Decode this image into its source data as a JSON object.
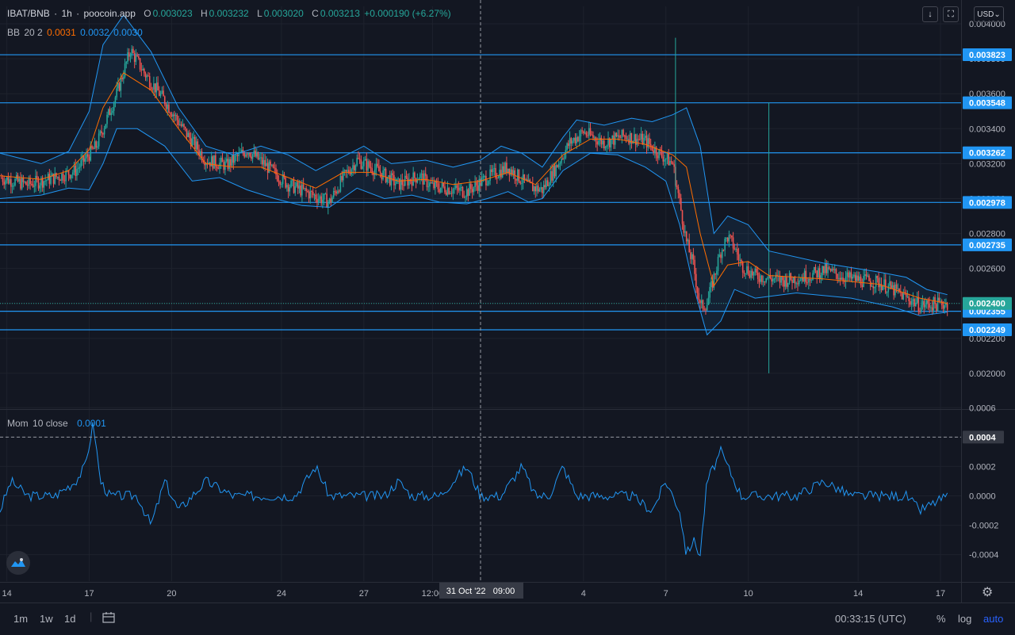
{
  "header": {
    "pair": "IBAT/BNB",
    "interval": "1h",
    "source": "poocoin.app",
    "open_label": "O",
    "open": "0.003023",
    "high_label": "H",
    "high": "0.003232",
    "low_label": "L",
    "low": "0.003020",
    "close_label": "C",
    "close": "0.003213",
    "change": "+0.000190 (+6.27%)",
    "currency": "USD"
  },
  "bb_legend": {
    "name": "BB",
    "params": "20 2",
    "basis": "0.0031",
    "upper": "0.0032",
    "lower": "0.0030"
  },
  "mom_legend": {
    "name": "Mom",
    "params": "10 close",
    "value": "0.0001"
  },
  "colors": {
    "background": "#131722",
    "up": "#26a69a",
    "down": "#ef5350",
    "bb_band": "#2196f3",
    "bb_basis": "#ff6d00",
    "level_line": "#2962ff",
    "mom_line": "#2196f3",
    "last_price": "#26a69a"
  },
  "chart_data": [
    {
      "type": "candlestick",
      "panel": "price",
      "ylim": [
        0.0018,
        0.0041
      ],
      "y_ticks": [
        "0.002000",
        "0.002200",
        "0.002400",
        "0.002600",
        "0.002800",
        "0.003000",
        "0.003200",
        "0.003400",
        "0.003600",
        "0.003800",
        "0.004000"
      ],
      "horizontal_levels": [
        "0.003823",
        "0.003548",
        "0.003262",
        "0.002978",
        "0.002735",
        "0.002355",
        "0.002249"
      ],
      "last_price": "0.002400",
      "price_path": [
        [
          0,
          0.00312
        ],
        [
          20,
          0.00308
        ],
        [
          40,
          0.00312
        ],
        [
          55,
          0.00316
        ],
        [
          70,
          0.0033
        ],
        [
          85,
          0.0036
        ],
        [
          95,
          0.00385
        ],
        [
          105,
          0.00372
        ],
        [
          120,
          0.00356
        ],
        [
          135,
          0.00338
        ],
        [
          150,
          0.00322
        ],
        [
          165,
          0.00319
        ],
        [
          180,
          0.00328
        ],
        [
          195,
          0.00318
        ],
        [
          210,
          0.00308
        ],
        [
          225,
          0.00303
        ],
        [
          240,
          0.00298
        ],
        [
          250,
          0.00312
        ],
        [
          260,
          0.00322
        ],
        [
          275,
          0.00316
        ],
        [
          290,
          0.00308
        ],
        [
          305,
          0.00313
        ],
        [
          315,
          0.00307
        ],
        [
          325,
          0.00306
        ],
        [
          340,
          0.00304
        ],
        [
          355,
          0.00312
        ],
        [
          370,
          0.00318
        ],
        [
          385,
          0.00307
        ],
        [
          395,
          0.00305
        ],
        [
          405,
          0.00318
        ],
        [
          415,
          0.00332
        ],
        [
          425,
          0.00338
        ],
        [
          440,
          0.00332
        ],
        [
          455,
          0.00336
        ],
        [
          470,
          0.00333
        ],
        [
          480,
          0.00326
        ],
        [
          490,
          0.0032
        ],
        [
          495,
          0.00298
        ],
        [
          500,
          0.00275
        ],
        [
          505,
          0.00262
        ],
        [
          510,
          0.00238
        ],
        [
          515,
          0.0024
        ],
        [
          520,
          0.00255
        ],
        [
          525,
          0.0027
        ],
        [
          530,
          0.00278
        ],
        [
          535,
          0.00272
        ],
        [
          540,
          0.00262
        ],
        [
          550,
          0.00256
        ],
        [
          570,
          0.00253
        ],
        [
          590,
          0.00256
        ],
        [
          600,
          0.00259
        ],
        [
          620,
          0.00254
        ],
        [
          640,
          0.00252
        ],
        [
          650,
          0.00248
        ],
        [
          670,
          0.00239
        ],
        [
          690,
          0.0024
        ]
      ],
      "bb_upper": [
        [
          0,
          0.00326
        ],
        [
          30,
          0.0032
        ],
        [
          50,
          0.00327
        ],
        [
          65,
          0.0035
        ],
        [
          75,
          0.00388
        ],
        [
          90,
          0.00405
        ],
        [
          110,
          0.00384
        ],
        [
          130,
          0.00352
        ],
        [
          150,
          0.0033
        ],
        [
          170,
          0.00325
        ],
        [
          190,
          0.0033
        ],
        [
          210,
          0.00325
        ],
        [
          230,
          0.00316
        ],
        [
          250,
          0.00324
        ],
        [
          265,
          0.0033
        ],
        [
          285,
          0.0032
        ],
        [
          310,
          0.00322
        ],
        [
          330,
          0.00318
        ],
        [
          350,
          0.00322
        ],
        [
          365,
          0.0033
        ],
        [
          380,
          0.00326
        ],
        [
          395,
          0.00318
        ],
        [
          410,
          0.00335
        ],
        [
          420,
          0.00345
        ],
        [
          440,
          0.00342
        ],
        [
          460,
          0.00346
        ],
        [
          475,
          0.00344
        ],
        [
          490,
          0.00348
        ],
        [
          500,
          0.00352
        ],
        [
          510,
          0.0033
        ],
        [
          520,
          0.0028
        ],
        [
          530,
          0.0029
        ],
        [
          545,
          0.00285
        ],
        [
          560,
          0.0027
        ],
        [
          600,
          0.00263
        ],
        [
          640,
          0.00258
        ],
        [
          660,
          0.00255
        ],
        [
          675,
          0.00248
        ],
        [
          690,
          0.00245
        ]
      ],
      "bb_lower": [
        [
          0,
          0.003
        ],
        [
          30,
          0.00302
        ],
        [
          50,
          0.00306
        ],
        [
          65,
          0.00305
        ],
        [
          75,
          0.0032
        ],
        [
          85,
          0.0034
        ],
        [
          100,
          0.0034
        ],
        [
          120,
          0.0033
        ],
        [
          140,
          0.0031
        ],
        [
          160,
          0.00312
        ],
        [
          180,
          0.00305
        ],
        [
          200,
          0.003
        ],
        [
          220,
          0.00296
        ],
        [
          240,
          0.00295
        ],
        [
          260,
          0.00306
        ],
        [
          280,
          0.003
        ],
        [
          300,
          0.00302
        ],
        [
          320,
          0.00298
        ],
        [
          340,
          0.00297
        ],
        [
          355,
          0.003
        ],
        [
          370,
          0.00304
        ],
        [
          385,
          0.00298
        ],
        [
          395,
          0.003
        ],
        [
          410,
          0.00316
        ],
        [
          430,
          0.00326
        ],
        [
          450,
          0.00325
        ],
        [
          470,
          0.00318
        ],
        [
          485,
          0.0031
        ],
        [
          495,
          0.00285
        ],
        [
          505,
          0.0025
        ],
        [
          515,
          0.00222
        ],
        [
          525,
          0.0023
        ],
        [
          535,
          0.00248
        ],
        [
          550,
          0.00243
        ],
        [
          580,
          0.00246
        ],
        [
          620,
          0.00243
        ],
        [
          650,
          0.00238
        ],
        [
          670,
          0.00233
        ],
        [
          690,
          0.00235
        ]
      ],
      "bb_basis": [
        [
          0,
          0.00313
        ],
        [
          30,
          0.00311
        ],
        [
          50,
          0.00316
        ],
        [
          65,
          0.00328
        ],
        [
          75,
          0.00352
        ],
        [
          90,
          0.00372
        ],
        [
          110,
          0.00362
        ],
        [
          130,
          0.0034
        ],
        [
          150,
          0.0032
        ],
        [
          170,
          0.00318
        ],
        [
          190,
          0.00318
        ],
        [
          210,
          0.00312
        ],
        [
          230,
          0.00306
        ],
        [
          250,
          0.00315
        ],
        [
          270,
          0.00315
        ],
        [
          290,
          0.0031
        ],
        [
          310,
          0.00311
        ],
        [
          330,
          0.00308
        ],
        [
          350,
          0.0031
        ],
        [
          370,
          0.00315
        ],
        [
          390,
          0.00308
        ],
        [
          410,
          0.00325
        ],
        [
          430,
          0.00334
        ],
        [
          450,
          0.00334
        ],
        [
          470,
          0.00331
        ],
        [
          490,
          0.00325
        ],
        [
          500,
          0.00318
        ],
        [
          510,
          0.0028
        ],
        [
          520,
          0.0025
        ],
        [
          530,
          0.00262
        ],
        [
          545,
          0.00264
        ],
        [
          560,
          0.00256
        ],
        [
          600,
          0.00254
        ],
        [
          640,
          0.00251
        ],
        [
          670,
          0.00243
        ],
        [
          690,
          0.0024
        ]
      ]
    },
    {
      "type": "line",
      "panel": "momentum",
      "name": "Mom",
      "ylim": [
        -0.00058,
        0.00058
      ],
      "y_ticks": [
        "0.0006",
        "0.0004",
        "0.0002",
        "0.0000",
        "-0.0002",
        "-0.0004"
      ],
      "marked_value": "0.0004",
      "values": [
        [
          0,
          -0.0001
        ],
        [
          8,
          0.0001
        ],
        [
          20,
          0.0
        ],
        [
          40,
          0.0
        ],
        [
          55,
          0.0001
        ],
        [
          62,
          0.0002
        ],
        [
          68,
          0.0005
        ],
        [
          73,
          0.0001
        ],
        [
          80,
          0.0
        ],
        [
          100,
          0.0
        ],
        [
          110,
          -0.0002
        ],
        [
          120,
          0.0001
        ],
        [
          130,
          -0.0001
        ],
        [
          150,
          0.0001
        ],
        [
          170,
          0.0
        ],
        [
          190,
          0.0
        ],
        [
          215,
          0.0
        ],
        [
          230,
          0.0002
        ],
        [
          240,
          0.0
        ],
        [
          260,
          0.0
        ],
        [
          280,
          0.0
        ],
        [
          290,
          0.0001
        ],
        [
          300,
          0.0
        ],
        [
          320,
          0.0
        ],
        [
          340,
          0.0002
        ],
        [
          350,
          0.0
        ],
        [
          365,
          0.0
        ],
        [
          380,
          0.0002
        ],
        [
          390,
          0.0
        ],
        [
          400,
          0.0
        ],
        [
          410,
          0.0002
        ],
        [
          420,
          0.0
        ],
        [
          440,
          0.0
        ],
        [
          460,
          0.0
        ],
        [
          475,
          -0.0001
        ],
        [
          485,
          0.0001
        ],
        [
          495,
          -0.0001
        ],
        [
          500,
          -0.0004
        ],
        [
          505,
          -0.0003
        ],
        [
          510,
          -0.0004
        ],
        [
          515,
          0.0001
        ],
        [
          520,
          0.0002
        ],
        [
          525,
          0.0003
        ],
        [
          530,
          0.0002
        ],
        [
          540,
          0.0
        ],
        [
          560,
          0.0
        ],
        [
          580,
          0.0
        ],
        [
          600,
          0.0001
        ],
        [
          620,
          0.0
        ],
        [
          640,
          0.0
        ],
        [
          660,
          0.0
        ],
        [
          670,
          -0.0001
        ],
        [
          690,
          0.0
        ]
      ]
    }
  ],
  "x_axis": {
    "ticks": [
      {
        "label": "14",
        "t": 5
      },
      {
        "label": "17",
        "t": 65
      },
      {
        "label": "20",
        "t": 125
      },
      {
        "label": "24",
        "t": 205
      },
      {
        "label": "27",
        "t": 265
      },
      {
        "label": "12:00",
        "t": 315
      },
      {
        "label": "4",
        "t": 425
      },
      {
        "label": "7",
        "t": 485
      },
      {
        "label": "10",
        "t": 545
      },
      {
        "label": "14",
        "t": 625
      },
      {
        "label": "17",
        "t": 685
      }
    ],
    "crosshair_label": "31 Oct '22   09:00",
    "crosshair_t": 350
  },
  "bottom_bar": {
    "ranges": [
      "1m",
      "1w",
      "1d"
    ],
    "clock": "00:33:15 (UTC)",
    "percent": "%",
    "log": "log",
    "auto": "auto"
  }
}
